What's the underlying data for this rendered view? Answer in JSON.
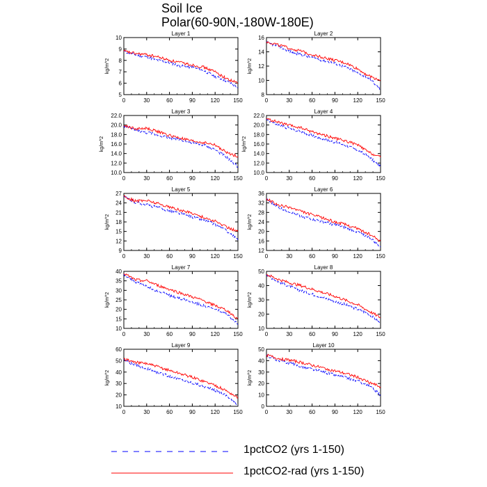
{
  "title_line1": "Soil Ice",
  "title_line2": "Polar(60-90N,-180W-180E)",
  "legend": [
    {
      "label": "1pctCO2 (yrs 1-150)",
      "color": "#0000ff",
      "dash": "dashed"
    },
    {
      "label": "1pctCO2-rad (yrs 1-150)",
      "color": "#ff0000",
      "dash": "solid"
    }
  ],
  "chart_data": [
    {
      "type": "line",
      "title": "Layer 1",
      "ylabel": "kg/m^2",
      "xlim": [
        0,
        150
      ],
      "ylim": [
        5,
        10
      ],
      "xticks": [
        0,
        30,
        60,
        90,
        120,
        150
      ],
      "yticks": [
        5,
        6,
        7,
        8,
        9,
        10
      ],
      "ytick_labels": [
        "5",
        "6",
        "7",
        "8",
        "9",
        "10"
      ],
      "x": [
        0,
        15,
        30,
        45,
        60,
        75,
        90,
        105,
        120,
        135,
        150
      ],
      "series": [
        {
          "name": "1pctCO2 (yrs 1-150)",
          "values": [
            8.8,
            8.5,
            8.3,
            8.0,
            7.8,
            7.5,
            7.4,
            7.1,
            6.6,
            6.2,
            5.6
          ]
        },
        {
          "name": "1pctCO2-rad (yrs 1-150)",
          "values": [
            8.8,
            8.6,
            8.5,
            8.3,
            8.0,
            7.8,
            7.6,
            7.4,
            7.0,
            6.4,
            6.0
          ]
        }
      ]
    },
    {
      "type": "line",
      "title": "Layer 2",
      "ylabel": "kg/m^2",
      "xlim": [
        0,
        150
      ],
      "ylim": [
        8,
        16
      ],
      "xticks": [
        0,
        30,
        60,
        90,
        120,
        150
      ],
      "yticks": [
        8,
        10,
        12,
        14,
        16
      ],
      "ytick_labels": [
        "8",
        "10",
        "12",
        "14",
        "16"
      ],
      "x": [
        0,
        15,
        30,
        45,
        60,
        75,
        90,
        105,
        120,
        135,
        150
      ],
      "series": [
        {
          "name": "1pctCO2 (yrs 1-150)",
          "values": [
            15.3,
            14.8,
            14.1,
            13.6,
            13.2,
            12.8,
            12.4,
            11.8,
            11.0,
            10.3,
            8.7
          ]
        },
        {
          "name": "1pctCO2-rad (yrs 1-150)",
          "values": [
            15.4,
            15.0,
            14.5,
            14.1,
            13.6,
            13.2,
            12.8,
            12.4,
            11.6,
            10.6,
            10.0
          ]
        }
      ]
    },
    {
      "type": "line",
      "title": "Layer 3",
      "ylabel": "kg/m^2",
      "xlim": [
        0,
        150
      ],
      "ylim": [
        10,
        22
      ],
      "xticks": [
        0,
        30,
        60,
        90,
        120,
        150
      ],
      "yticks": [
        10,
        12,
        14,
        16,
        18,
        20,
        22
      ],
      "ytick_labels": [
        "10.0",
        "12.0",
        "14.0",
        "16.0",
        "18.0",
        "20.0",
        "22.0"
      ],
      "x": [
        0,
        15,
        30,
        45,
        60,
        75,
        90,
        105,
        120,
        135,
        150
      ],
      "series": [
        {
          "name": "1pctCO2 (yrs 1-150)",
          "values": [
            19.8,
            18.9,
            18.4,
            17.9,
            17.3,
            16.9,
            16.2,
            15.8,
            14.8,
            13.2,
            11.2
          ]
        },
        {
          "name": "1pctCO2-rad (yrs 1-150)",
          "values": [
            19.9,
            19.2,
            19.3,
            18.6,
            17.8,
            17.2,
            16.6,
            16.3,
            15.8,
            14.2,
            13.4
          ]
        }
      ]
    },
    {
      "type": "line",
      "title": "Layer 4",
      "ylabel": "kg/m^2",
      "xlim": [
        0,
        150
      ],
      "ylim": [
        10,
        22
      ],
      "xticks": [
        0,
        30,
        60,
        90,
        120,
        150
      ],
      "yticks": [
        10,
        12,
        14,
        16,
        18,
        20,
        22
      ],
      "ytick_labels": [
        "10.0",
        "12.0",
        "14.0",
        "16.0",
        "18.0",
        "20.0",
        "22.0"
      ],
      "x": [
        0,
        15,
        30,
        45,
        60,
        75,
        90,
        105,
        120,
        135,
        150
      ],
      "series": [
        {
          "name": "1pctCO2 (yrs 1-150)",
          "values": [
            21.2,
            20.0,
            19.3,
            18.6,
            17.8,
            17.1,
            16.4,
            15.7,
            14.7,
            13.3,
            11.2
          ]
        },
        {
          "name": "1pctCO2-rad (yrs 1-150)",
          "values": [
            21.3,
            20.6,
            19.9,
            19.4,
            18.6,
            17.9,
            17.2,
            16.6,
            15.8,
            14.2,
            13.2
          ]
        }
      ]
    },
    {
      "type": "line",
      "title": "Layer 5",
      "ylabel": "kg/m^2",
      "xlim": [
        0,
        150
      ],
      "ylim": [
        9,
        27
      ],
      "xticks": [
        0,
        30,
        60,
        90,
        120,
        150
      ],
      "yticks": [
        9,
        12,
        15,
        18,
        21,
        24,
        27
      ],
      "ytick_labels": [
        "9",
        "12",
        "15",
        "18",
        "21",
        "24",
        "27"
      ],
      "x": [
        0,
        15,
        30,
        45,
        60,
        75,
        90,
        105,
        120,
        135,
        150
      ],
      "series": [
        {
          "name": "1pctCO2 (yrs 1-150)",
          "values": [
            26.0,
            24.2,
            23.4,
            22.5,
            21.5,
            20.6,
            19.6,
            18.6,
            17.2,
            15.3,
            12.3
          ]
        },
        {
          "name": "1pctCO2-rad (yrs 1-150)",
          "values": [
            26.1,
            24.6,
            24.8,
            23.8,
            22.7,
            21.6,
            20.8,
            19.4,
            18.2,
            16.4,
            15.0
          ]
        }
      ]
    },
    {
      "type": "line",
      "title": "Layer 6",
      "ylabel": "kg/m^2",
      "xlim": [
        0,
        150
      ],
      "ylim": [
        12,
        36
      ],
      "xticks": [
        0,
        30,
        60,
        90,
        120,
        150
      ],
      "yticks": [
        12,
        16,
        20,
        24,
        28,
        32,
        36
      ],
      "ytick_labels": [
        "12",
        "16",
        "20",
        "24",
        "28",
        "32",
        "36"
      ],
      "x": [
        0,
        15,
        30,
        45,
        60,
        75,
        90,
        105,
        120,
        135,
        150
      ],
      "series": [
        {
          "name": "1pctCO2 (yrs 1-150)",
          "values": [
            33.5,
            30.2,
            28.4,
            26.5,
            25.2,
            24.0,
            22.8,
            21.5,
            19.8,
            17.6,
            13.5
          ]
        },
        {
          "name": "1pctCO2-rad (yrs 1-150)",
          "values": [
            33.8,
            31.0,
            30.2,
            28.5,
            27.0,
            25.6,
            24.0,
            22.8,
            21.2,
            18.8,
            16.0
          ]
        }
      ]
    },
    {
      "type": "line",
      "title": "Layer 7",
      "ylabel": "kg/m^2",
      "xlim": [
        0,
        150
      ],
      "ylim": [
        10,
        40
      ],
      "xticks": [
        0,
        30,
        60,
        90,
        120,
        150
      ],
      "yticks": [
        10,
        15,
        20,
        25,
        30,
        35,
        40
      ],
      "ytick_labels": [
        "10",
        "15",
        "20",
        "25",
        "30",
        "35",
        "40"
      ],
      "x": [
        0,
        15,
        30,
        45,
        60,
        75,
        90,
        105,
        120,
        135,
        150
      ],
      "series": [
        {
          "name": "1pctCO2 (yrs 1-150)",
          "values": [
            38.5,
            34.5,
            32.0,
            29.5,
            27.5,
            25.5,
            24.0,
            22.0,
            20.0,
            17.5,
            12.0
          ]
        },
        {
          "name": "1pctCO2-rad (yrs 1-150)",
          "values": [
            38.8,
            35.5,
            35.0,
            32.5,
            30.5,
            28.5,
            26.5,
            24.5,
            22.0,
            19.5,
            15.0
          ]
        }
      ]
    },
    {
      "type": "line",
      "title": "Layer 8",
      "ylabel": "kg/m^2",
      "xlim": [
        0,
        150
      ],
      "ylim": [
        10,
        50
      ],
      "xticks": [
        0,
        30,
        60,
        90,
        120,
        150
      ],
      "yticks": [
        10,
        20,
        30,
        40,
        50
      ],
      "ytick_labels": [
        "10",
        "20",
        "30",
        "40",
        "50"
      ],
      "x": [
        0,
        15,
        30,
        45,
        60,
        75,
        90,
        105,
        120,
        135,
        150
      ],
      "series": [
        {
          "name": "1pctCO2 (yrs 1-150)",
          "values": [
            47.5,
            43.0,
            39.5,
            36.5,
            34.0,
            31.5,
            29.0,
            26.5,
            23.5,
            20.0,
            13.5
          ]
        },
        {
          "name": "1pctCO2-rad (yrs 1-150)",
          "values": [
            47.8,
            44.5,
            42.0,
            40.0,
            37.5,
            35.0,
            32.5,
            29.5,
            26.5,
            22.0,
            17.5
          ]
        }
      ]
    },
    {
      "type": "line",
      "title": "Layer 9",
      "ylabel": "kg/m^2",
      "xlim": [
        0,
        150
      ],
      "ylim": [
        10,
        60
      ],
      "xticks": [
        0,
        30,
        60,
        90,
        120,
        150
      ],
      "yticks": [
        10,
        20,
        30,
        40,
        50,
        60
      ],
      "ytick_labels": [
        "10",
        "20",
        "30",
        "40",
        "50",
        "60"
      ],
      "x": [
        0,
        15,
        30,
        45,
        60,
        75,
        90,
        105,
        120,
        135,
        150
      ],
      "series": [
        {
          "name": "1pctCO2 (yrs 1-150)",
          "values": [
            51.0,
            46.0,
            43.0,
            39.5,
            36.5,
            33.5,
            30.5,
            27.5,
            24.0,
            19.5,
            11.0
          ]
        },
        {
          "name": "1pctCO2-rad (yrs 1-150)",
          "values": [
            51.5,
            48.5,
            47.5,
            44.5,
            41.5,
            38.5,
            35.5,
            32.0,
            28.5,
            23.5,
            17.5
          ]
        }
      ]
    },
    {
      "type": "line",
      "title": "Layer 10",
      "ylabel": "kg/m^2",
      "xlim": [
        0,
        150
      ],
      "ylim": [
        0,
        50
      ],
      "xticks": [
        0,
        30,
        60,
        90,
        120,
        150
      ],
      "yticks": [
        0,
        10,
        20,
        30,
        40,
        50
      ],
      "ytick_labels": [
        "0",
        "10",
        "20",
        "30",
        "40",
        "50"
      ],
      "x": [
        0,
        15,
        30,
        45,
        60,
        75,
        90,
        105,
        120,
        135,
        150
      ],
      "series": [
        {
          "name": "1pctCO2 (yrs 1-150)",
          "values": [
            44.5,
            40.5,
            38.0,
            35.0,
            32.5,
            30.0,
            27.5,
            25.0,
            22.0,
            18.0,
            10.0
          ]
        },
        {
          "name": "1pctCO2-rad (yrs 1-150)",
          "values": [
            44.8,
            42.0,
            40.5,
            38.5,
            36.0,
            33.5,
            31.0,
            28.5,
            25.5,
            21.0,
            17.0
          ]
        }
      ]
    }
  ]
}
